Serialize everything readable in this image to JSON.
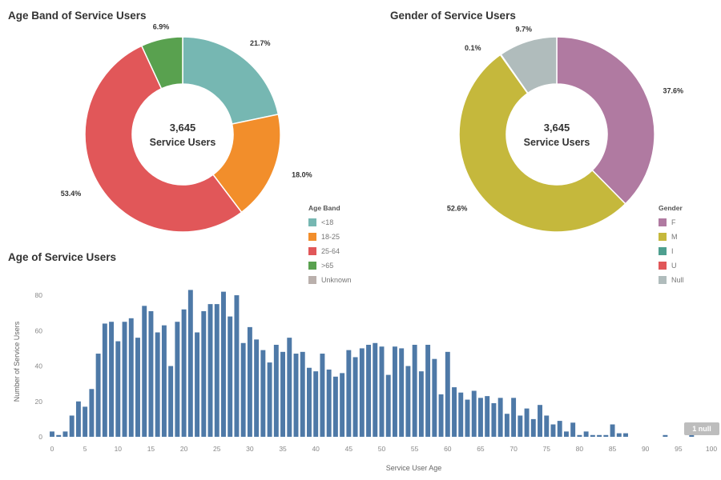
{
  "chart_data": [
    {
      "type": "pie",
      "title": "Age Band of Service Users",
      "center_value": "3,645",
      "center_label": "Service Users",
      "legend_title": "Age Band",
      "slices": [
        {
          "name": "<18",
          "value": 21.7,
          "label": "21.7%",
          "color": "#76b7b2"
        },
        {
          "name": "18-25",
          "value": 18.0,
          "label": "18.0%",
          "color": "#f28e2b"
        },
        {
          "name": "25-64",
          "value": 53.4,
          "label": "53.4%",
          "color": "#e15759"
        },
        {
          "name": ">65",
          "value": 6.9,
          "label": "6.9%",
          "color": "#59a14f"
        },
        {
          "name": "Unknown",
          "value": 0,
          "label": "",
          "color": "#bab0ac"
        }
      ]
    },
    {
      "type": "pie",
      "title": "Gender of Service Users",
      "center_value": "3,645",
      "center_label": "Service Users",
      "legend_title": "Gender",
      "slices": [
        {
          "name": "F",
          "value": 37.6,
          "label": "37.6%",
          "color": "#b07aa1"
        },
        {
          "name": "M",
          "value": 52.6,
          "label": "52.6%",
          "color": "#c5b83c"
        },
        {
          "name": "I",
          "value": 0.1,
          "label": "0.1%",
          "color": "#4e9f8f"
        },
        {
          "name": "U",
          "value": 0,
          "label": "",
          "color": "#e15759"
        },
        {
          "name": "Null",
          "value": 9.7,
          "label": "9.7%",
          "color": "#b0bcbc"
        }
      ]
    },
    {
      "type": "bar",
      "title": "Age of Service Users",
      "xlabel": "Service User Age",
      "ylabel": "Number of Service Users",
      "xlim": [
        0,
        100
      ],
      "ylim": [
        0,
        85
      ],
      "x_ticks": [
        0,
        5,
        10,
        15,
        20,
        25,
        30,
        35,
        40,
        45,
        50,
        55,
        60,
        65,
        70,
        75,
        80,
        85,
        90,
        95,
        100
      ],
      "y_ticks": [
        0,
        20,
        40,
        60,
        80
      ],
      "bar_color": "#4e79a7",
      "x": [
        0,
        1,
        2,
        3,
        4,
        5,
        6,
        7,
        8,
        9,
        10,
        11,
        12,
        13,
        14,
        15,
        16,
        17,
        18,
        19,
        20,
        21,
        22,
        23,
        24,
        25,
        26,
        27,
        28,
        29,
        30,
        31,
        32,
        33,
        34,
        35,
        36,
        37,
        38,
        39,
        40,
        41,
        42,
        43,
        44,
        45,
        46,
        47,
        48,
        49,
        50,
        51,
        52,
        53,
        54,
        55,
        56,
        57,
        58,
        59,
        60,
        61,
        62,
        63,
        64,
        65,
        66,
        67,
        68,
        69,
        70,
        71,
        72,
        73,
        74,
        75,
        76,
        77,
        78,
        79,
        80,
        81,
        82,
        83,
        84,
        85,
        86,
        87,
        88,
        89,
        90,
        91,
        92,
        93,
        94,
        95,
        96,
        97,
        98,
        99,
        100
      ],
      "values": [
        3,
        1,
        3,
        12,
        20,
        17,
        27,
        47,
        64,
        65,
        54,
        65,
        67,
        56,
        74,
        71,
        59,
        63,
        40,
        65,
        72,
        83,
        59,
        71,
        75,
        75,
        82,
        68,
        80,
        53,
        62,
        55,
        49,
        42,
        52,
        48,
        56,
        47,
        48,
        39,
        37,
        47,
        38,
        34,
        36,
        49,
        45,
        50,
        52,
        53,
        51,
        35,
        51,
        50,
        40,
        52,
        37,
        52,
        44,
        24,
        48,
        28,
        25,
        21,
        26,
        22,
        23,
        19,
        22,
        13,
        22,
        12,
        16,
        10,
        18,
        12,
        7,
        9,
        3,
        8,
        1,
        3,
        1,
        1,
        1,
        7,
        2,
        2,
        0,
        0,
        0,
        0,
        0,
        1,
        0,
        0,
        0,
        1,
        0,
        0,
        0
      ],
      "null_badge": "1 null"
    }
  ]
}
